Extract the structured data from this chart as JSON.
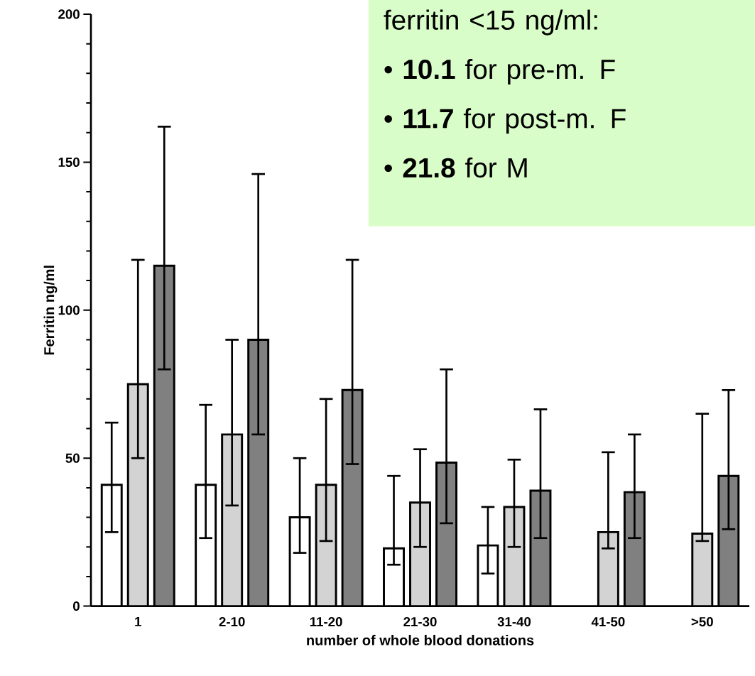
{
  "chart_data": {
    "type": "bar",
    "xlabel": "number of whole blood donations",
    "ylabel": "Ferritin ng/ml",
    "categories": [
      "1",
      "2-10",
      "11-20",
      "21-30",
      "31-40",
      "41-50",
      ">50"
    ],
    "series": [
      {
        "color": "#ffffff",
        "values": [
          41,
          41,
          30,
          19.5,
          20.5,
          null,
          null
        ],
        "errors": [
          [
            25,
            62
          ],
          [
            23,
            68
          ],
          [
            18,
            50
          ],
          [
            14,
            44
          ],
          [
            11,
            33.5
          ],
          null,
          null
        ]
      },
      {
        "color": "#d3d3d3",
        "values": [
          75,
          58,
          41,
          35,
          33.5,
          25,
          24.5
        ],
        "errors": [
          [
            50,
            117
          ],
          [
            34,
            90
          ],
          [
            22,
            70
          ],
          [
            20,
            53
          ],
          [
            20,
            49.5
          ],
          [
            19.5,
            52
          ],
          [
            22,
            65
          ]
        ]
      },
      {
        "color": "#808080",
        "values": [
          115,
          90,
          73,
          48.5,
          39,
          38.5,
          44
        ],
        "errors": [
          [
            80,
            162
          ],
          [
            58,
            146
          ],
          [
            48,
            117
          ],
          [
            28,
            80
          ],
          [
            23,
            66.5
          ],
          [
            23,
            58
          ],
          [
            26,
            73
          ]
        ]
      }
    ],
    "ylim": [
      0,
      200
    ],
    "yticks": [
      0,
      50,
      100,
      150,
      200
    ],
    "annotations": [
      "ferritin <15 ng/ml:",
      "• **10.1** for pre-m. F",
      "• **11.7** for post-m. F",
      "• **21.8** for M"
    ],
    "tick_labels": true
  }
}
